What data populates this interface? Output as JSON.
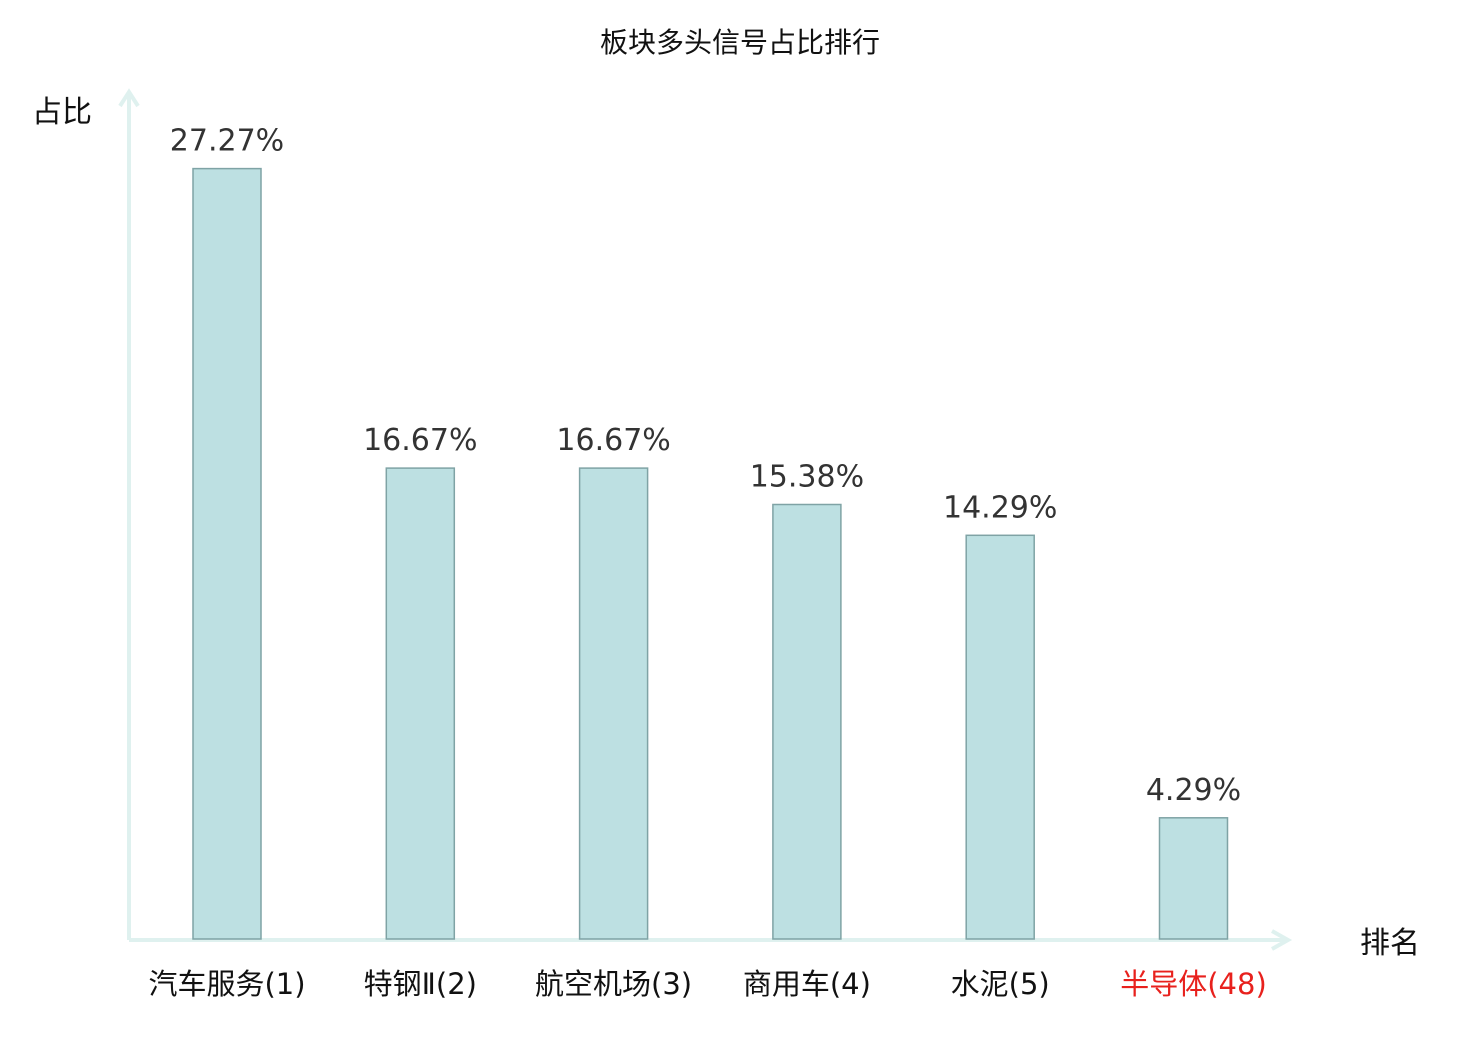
{
  "chart_data": {
    "type": "bar",
    "title": "板块多头信号占比排行",
    "ylabel": "占比",
    "xlabel": "排名",
    "categories": [
      "汽车服务(1)",
      "特钢Ⅱ(2)",
      "航空机场(3)",
      "商用车(4)",
      "水泥(5)",
      "半导体(48)"
    ],
    "values": [
      27.27,
      16.67,
      16.67,
      15.38,
      14.29,
      4.29
    ],
    "value_labels": [
      "27.27%",
      "16.67%",
      "16.67%",
      "15.38%",
      "14.29%",
      "4.29%"
    ],
    "highlight_index": 5,
    "ylim": [
      0,
      30
    ],
    "grid": false,
    "colors": {
      "bar_fill": "#bde0e2",
      "bar_stroke": "#7fa3a5",
      "axis": "#dff1ef",
      "text": "#333333",
      "highlight_text": "#e8211d"
    }
  }
}
